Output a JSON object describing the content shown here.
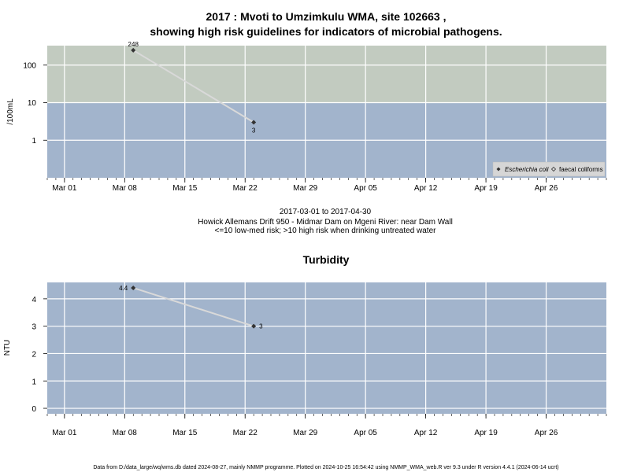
{
  "chart_data": [
    {
      "type": "line",
      "title_line1": "2017 : Mvoti to Umzimkulu WMA, site 102663 ,",
      "title_line2": "showing high risk guidelines for indicators of microbial pathogens.",
      "ylabel": "/100mL",
      "yscale": "log",
      "yticks": [
        1,
        10,
        100
      ],
      "ylim": [
        0.1,
        330
      ],
      "risk_threshold": 10,
      "x_tick_labels": [
        "Mar 01",
        "Mar 08",
        "Mar 15",
        "Mar 22",
        "Mar 29",
        "Apr 05",
        "Apr 12",
        "Apr 19",
        "Apr 26"
      ],
      "x_tick_dates": [
        "2017-03-01",
        "2017-03-08",
        "2017-03-15",
        "2017-03-22",
        "2017-03-29",
        "2017-04-05",
        "2017-04-12",
        "2017-04-19",
        "2017-04-26"
      ],
      "xlim": [
        "2017-02-27",
        "2017-05-03"
      ],
      "series": [
        {
          "name": "Escherichia coli",
          "x": [
            "2017-03-09",
            "2017-03-23"
          ],
          "y": [
            248,
            3
          ],
          "labels": [
            "248",
            "3"
          ]
        }
      ],
      "legend": {
        "position": "bottom-right",
        "entries": [
          "Escherichia coli",
          "faecal coliforms"
        ]
      },
      "caption": [
        "2017-03-01 to 2017-04-30",
        "Howick Allemans Drift 950 - Midmar Dam on Mgeni River: near Dam Wall",
        "<=10 low-med risk; >10 high risk when drinking untreated water"
      ],
      "colors": {
        "low_risk_band": "#a2b4cc",
        "high_risk_band": "#c2cbc0",
        "grid": "#ffffff",
        "line": "#d9d9d9",
        "point": "#333333"
      }
    },
    {
      "type": "line",
      "title": "Turbidity",
      "ylabel": "NTU",
      "yticks": [
        0,
        1,
        2,
        3,
        4
      ],
      "ylim": [
        -0.2,
        4.6
      ],
      "x_tick_labels": [
        "Mar 01",
        "Mar 08",
        "Mar 15",
        "Mar 22",
        "Mar 29",
        "Apr 05",
        "Apr 12",
        "Apr 19",
        "Apr 26"
      ],
      "x_tick_dates": [
        "2017-03-01",
        "2017-03-08",
        "2017-03-15",
        "2017-03-22",
        "2017-03-29",
        "2017-04-05",
        "2017-04-12",
        "2017-04-19",
        "2017-04-26"
      ],
      "xlim": [
        "2017-02-27",
        "2017-05-03"
      ],
      "series": [
        {
          "x": [
            "2017-03-09",
            "2017-03-23"
          ],
          "y": [
            4.4,
            3
          ],
          "labels": [
            "4.4",
            "3"
          ]
        }
      ],
      "colors": {
        "band": "#a2b4cc",
        "grid": "#ffffff",
        "line": "#d9d9d9",
        "point": "#333333"
      }
    }
  ],
  "footer": "Data from D:/data_large/wq/wms.db dated 2024-08-27, mainly NMMP programme. Plotted on 2024-10-25 16:54:42 using NMMP_WMA_web.R ver 9.3 under R version 4.4.1 (2024-06-14 ucrt)"
}
